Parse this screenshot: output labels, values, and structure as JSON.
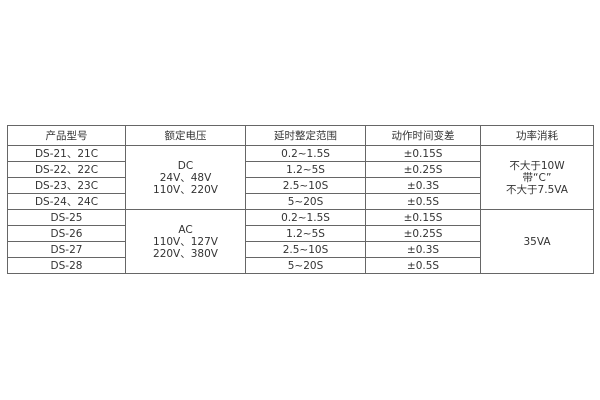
{
  "headers": [
    "产品型号",
    "额定电压",
    "延时整定范围",
    "动作时间变差",
    "功率消耗"
  ],
  "groups": [
    {
      "voltage": [
        "DC",
        "24V、48V",
        "110V、220V"
      ],
      "power": [
        "不大于10W",
        "带“C”",
        "不大于7.5VA"
      ],
      "rows": [
        {
          "model": "DS-21、21C",
          "range": "0.2~1.5S",
          "variance": "±0.15S"
        },
        {
          "model": "DS-22、22C",
          "range": "1.2~5S",
          "variance": "±0.25S"
        },
        {
          "model": "DS-23、23C",
          "range": "2.5~10S",
          "variance": "±0.3S"
        },
        {
          "model": "DS-24、24C",
          "range": "5~20S",
          "variance": "±0.5S"
        }
      ]
    },
    {
      "voltage": [
        "AC",
        "110V、127V",
        "220V、380V"
      ],
      "power": [
        "35VA"
      ],
      "rows": [
        {
          "model": "DS-25",
          "range": "0.2~1.5S",
          "variance": "±0.15S"
        },
        {
          "model": "DS-26",
          "range": "1.2~5S",
          "variance": "±0.25S"
        },
        {
          "model": "DS-27",
          "range": "2.5~10S",
          "variance": "±0.3S"
        },
        {
          "model": "DS-28",
          "range": "5~20S",
          "variance": "±0.5S"
        }
      ]
    }
  ]
}
